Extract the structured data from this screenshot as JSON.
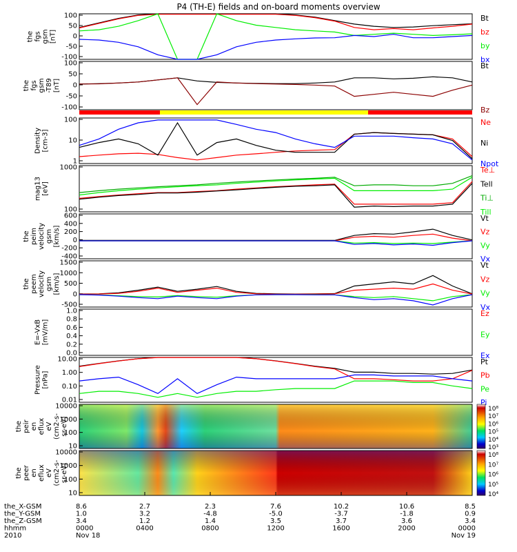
{
  "title": "P4 (TH-E) fields and on-board moments overview",
  "colors": {
    "black": "#000000",
    "red": "#ff0000",
    "green": "#00ee00",
    "blue": "#0000ff",
    "yellow": "#ffff00"
  },
  "chart_data": [
    {
      "type": "line",
      "ylabel": [
        "the",
        "fgs",
        "gsm",
        "[nT]"
      ],
      "yticks": [
        "100",
        "50",
        "0",
        "-50",
        "-100"
      ],
      "ylim": [
        -100,
        100
      ],
      "series": [
        {
          "name": "Bt",
          "color": "#000000",
          "values": [
            40,
            60,
            80,
            95,
            100,
            100,
            100,
            100,
            100,
            100,
            100,
            95,
            85,
            70,
            55,
            45,
            40,
            42,
            48,
            52,
            56
          ]
        },
        {
          "name": "bz",
          "color": "#ff0000",
          "values": [
            38,
            58,
            78,
            93,
            98,
            98,
            98,
            98,
            98,
            98,
            98,
            93,
            83,
            68,
            40,
            30,
            35,
            30,
            38,
            45,
            55
          ]
        },
        {
          "name": "by",
          "color": "#00ee00",
          "values": [
            25,
            30,
            45,
            70,
            100,
            -100,
            -100,
            100,
            70,
            50,
            40,
            30,
            25,
            20,
            5,
            10,
            15,
            10,
            5,
            8,
            12
          ]
        },
        {
          "name": "bx",
          "color": "#0000ff",
          "values": [
            -12,
            -15,
            -25,
            -45,
            -80,
            -100,
            -100,
            -80,
            -45,
            -25,
            -15,
            -10,
            -6,
            -5,
            5,
            0,
            10,
            -5,
            -5,
            0,
            5
          ]
        }
      ]
    },
    {
      "type": "line",
      "ylabel": [
        "the",
        "fgs",
        "gsm",
        "-T89",
        "[nT]"
      ],
      "yticks": [
        "100",
        "50",
        "0",
        "-50",
        "-100"
      ],
      "ylim": [
        -125,
        110
      ],
      "series": [
        {
          "name": "Bt",
          "color": "#000000",
          "values": [
            0,
            2,
            5,
            10,
            20,
            30,
            15,
            8,
            5,
            3,
            2,
            2,
            5,
            10,
            30,
            30,
            25,
            28,
            35,
            30,
            10
          ]
        },
        {
          "name": "Bz",
          "color": "#8b0000",
          "values": [
            0,
            1,
            5,
            10,
            20,
            30,
            -100,
            10,
            5,
            2,
            0,
            -2,
            -5,
            -10,
            -60,
            -50,
            -40,
            -50,
            -60,
            -30,
            -5
          ]
        }
      ]
    },
    {
      "type": "line",
      "ylabel": [
        "Density",
        "[cm-3]"
      ],
      "yticks": [
        "100",
        "10",
        "1"
      ],
      "ylim": [
        0.3,
        200
      ],
      "scale": "log",
      "series": [
        {
          "name": "Ne",
          "color": "#ff0000",
          "values": [
            0.8,
            1,
            1.2,
            1.3,
            1.1,
            0.7,
            0.5,
            0.7,
            1.0,
            1.2,
            1.5,
            1.8,
            2,
            2.2,
            20,
            25,
            22,
            20,
            18,
            10,
            0.8
          ]
        },
        {
          "name": "Ni",
          "color": "#000000",
          "values": [
            3,
            6,
            10,
            5,
            1,
            100,
            1,
            6,
            10,
            4,
            2,
            1.5,
            1.5,
            1.5,
            20,
            25,
            22,
            20,
            18,
            8,
            0.6
          ]
        },
        {
          "name": "Npot",
          "color": "#0000ff",
          "values": [
            4,
            10,
            40,
            100,
            150,
            150,
            150,
            150,
            80,
            40,
            25,
            10,
            5,
            3,
            15,
            15,
            15,
            12,
            10,
            5,
            0.5
          ]
        }
      ]
    },
    {
      "type": "line",
      "ylabel": [
        "mag13",
        "[eV]"
      ],
      "yticks": [
        "1000",
        "100"
      ],
      "ylim": [
        40,
        10000
      ],
      "scale": "log",
      "series": [
        {
          "name": "Te⊥",
          "color": "#ff0000",
          "values": [
            200,
            250,
            300,
            350,
            400,
            400,
            450,
            500,
            600,
            700,
            800,
            900,
            1000,
            1100,
            100,
            100,
            100,
            100,
            100,
            120,
            1500
          ]
        },
        {
          "name": "Tell",
          "color": "#000000",
          "values": [
            180,
            230,
            280,
            320,
            380,
            380,
            420,
            480,
            550,
            650,
            750,
            850,
            900,
            1000,
            70,
            80,
            75,
            80,
            80,
            100,
            1200
          ]
        },
        {
          "name": "Ti⊥",
          "color": "#00aa00",
          "values": [
            400,
            500,
            600,
            700,
            800,
            900,
            1000,
            1200,
            1400,
            1600,
            1800,
            2000,
            2200,
            2500,
            900,
            1000,
            1000,
            900,
            900,
            1200,
            3000
          ]
        },
        {
          "name": "Till",
          "color": "#00ee00",
          "values": [
            300,
            400,
            500,
            600,
            700,
            800,
            900,
            1000,
            1200,
            1400,
            1600,
            1800,
            2000,
            2200,
            500,
            500,
            500,
            500,
            500,
            600,
            2500
          ]
        }
      ]
    },
    {
      "type": "line",
      "ylabel": [
        "the",
        "peim",
        "velocity",
        "gsm",
        "[km/s]"
      ],
      "yticks": [
        "600",
        "400",
        "200",
        "0",
        "-200",
        "-400"
      ],
      "ylim": [
        -400,
        600
      ],
      "series": [
        {
          "name": "Vt",
          "color": "#000000",
          "values": [
            10,
            10,
            10,
            10,
            10,
            10,
            10,
            10,
            10,
            10,
            10,
            10,
            10,
            10,
            120,
            160,
            150,
            200,
            260,
            120,
            20
          ]
        },
        {
          "name": "Vz",
          "color": "#ff0000",
          "values": [
            0,
            0,
            0,
            0,
            0,
            0,
            0,
            0,
            0,
            0,
            0,
            0,
            0,
            0,
            80,
            100,
            80,
            120,
            150,
            60,
            0
          ]
        },
        {
          "name": "Vy",
          "color": "#00ee00",
          "values": [
            0,
            0,
            0,
            0,
            0,
            0,
            0,
            0,
            0,
            0,
            0,
            0,
            0,
            0,
            -50,
            -40,
            -60,
            -50,
            -60,
            -30,
            0
          ]
        },
        {
          "name": "Vx",
          "color": "#0000ff",
          "values": [
            0,
            0,
            0,
            0,
            0,
            0,
            0,
            0,
            0,
            0,
            0,
            0,
            0,
            0,
            -80,
            -60,
            -90,
            -70,
            -100,
            -40,
            0
          ]
        }
      ]
    },
    {
      "type": "line",
      "ylabel": [
        "the",
        "peem",
        "velocity",
        "gsm",
        "[km/s]"
      ],
      "yticks": [
        "1500",
        "1000",
        "500",
        "0",
        "-500"
      ],
      "ylim": [
        -600,
        1600
      ],
      "series": [
        {
          "name": "Vt",
          "color": "#000000",
          "values": [
            20,
            30,
            80,
            200,
            350,
            150,
            250,
            380,
            150,
            50,
            30,
            20,
            30,
            40,
            400,
            500,
            600,
            500,
            900,
            400,
            30
          ]
        },
        {
          "name": "Vz",
          "color": "#ff0000",
          "values": [
            10,
            20,
            50,
            150,
            300,
            100,
            200,
            300,
            100,
            30,
            10,
            10,
            20,
            30,
            200,
            250,
            300,
            250,
            500,
            200,
            20
          ]
        },
        {
          "name": "Vy",
          "color": "#00ee00",
          "values": [
            -10,
            -20,
            -60,
            -100,
            -120,
            -50,
            -100,
            -130,
            -60,
            -20,
            -10,
            -10,
            -10,
            -20,
            -100,
            -150,
            -100,
            -200,
            -300,
            -100,
            -10
          ]
        },
        {
          "name": "Vx",
          "color": "#0000ff",
          "values": [
            -10,
            -30,
            -80,
            -150,
            -200,
            -80,
            -150,
            -200,
            -80,
            -20,
            -10,
            -10,
            -20,
            -20,
            -150,
            -250,
            -200,
            -300,
            -500,
            -200,
            -10
          ]
        }
      ]
    },
    {
      "type": "line",
      "ylabel": [
        "E=-VxB",
        "[mV/m]"
      ],
      "yticks": [
        "1.0",
        "0.8",
        "0.6",
        "0.4",
        "0.2",
        "0.0"
      ],
      "ylim": [
        0,
        1
      ],
      "series": [
        {
          "name": "Ez",
          "color": "#ff0000",
          "values": []
        },
        {
          "name": "Ey",
          "color": "#00ee00",
          "values": []
        },
        {
          "name": "Ex",
          "color": "#0000ff",
          "values": []
        }
      ]
    },
    {
      "type": "line",
      "ylabel": [
        "Pressure",
        "[nPa]"
      ],
      "yticks": [
        "10.00",
        "1.00",
        "0.10",
        "0.01"
      ],
      "ylim": [
        0.004,
        15
      ],
      "scale": "log",
      "series": [
        {
          "name": "Pt",
          "color": "#000000",
          "values": [
            3,
            5,
            8,
            12,
            15,
            15,
            15,
            15,
            15,
            12,
            8,
            5,
            3,
            2,
            1,
            1,
            0.8,
            0.8,
            0.7,
            0.8,
            1.5
          ]
        },
        {
          "name": "Pb",
          "color": "#ff0000",
          "values": [
            2.8,
            4.8,
            7.8,
            11.8,
            14.8,
            14.8,
            14.8,
            14.8,
            14.8,
            11.8,
            7.8,
            4.8,
            2.8,
            1.8,
            0.3,
            0.3,
            0.25,
            0.2,
            0.2,
            0.3,
            1.4
          ]
        },
        {
          "name": "Pe",
          "color": "#00ee00",
          "values": [
            0.02,
            0.03,
            0.03,
            0.02,
            0.01,
            0.02,
            0.01,
            0.02,
            0.03,
            0.03,
            0.04,
            0.05,
            0.05,
            0.05,
            0.2,
            0.2,
            0.2,
            0.15,
            0.15,
            0.08,
            0.05
          ]
        },
        {
          "name": "Pi",
          "color": "#0000ff",
          "values": [
            0.2,
            0.3,
            0.4,
            0.1,
            0.02,
            0.3,
            0.02,
            0.1,
            0.4,
            0.3,
            0.3,
            0.3,
            0.3,
            0.3,
            0.6,
            0.6,
            0.5,
            0.5,
            0.5,
            0.3,
            0.2
          ]
        }
      ]
    },
    {
      "type": "heatmap",
      "ylabel": [
        "the",
        "peir",
        "en",
        "eflux",
        "eV",
        "(cm2-s-",
        "sr-eV)"
      ],
      "yticks": [
        "10000",
        "1000",
        "100",
        "10"
      ],
      "colorbar": [
        "10⁸",
        "10⁷",
        "10⁶",
        "10⁵",
        "10⁴",
        "10³"
      ]
    },
    {
      "type": "heatmap",
      "ylabel": [
        "the",
        "peer",
        "en",
        "eflux",
        "eV",
        "(cm2-s-",
        "sr-eV)"
      ],
      "yticks": [
        "10000",
        "1000",
        "100",
        "10"
      ],
      "colorbar": [
        "10⁸",
        "10⁷",
        "10⁶",
        "10⁵",
        "10⁴"
      ]
    }
  ],
  "xaxis": {
    "rows": [
      {
        "label": "the_X-GSM",
        "values": [
          "8.6",
          "2.7",
          "2.3",
          "7.6",
          "10.2",
          "10.6",
          "8.5"
        ]
      },
      {
        "label": "the_Y-GSM",
        "values": [
          "1.0",
          "3.2",
          "-4.8",
          "-5.0",
          "-3.7",
          "-1.8",
          "0.9"
        ]
      },
      {
        "label": "the_Z-GSM",
        "values": [
          "3.4",
          "1.2",
          "1.4",
          "3.5",
          "3.7",
          "3.6",
          "3.4"
        ]
      },
      {
        "label": "hhmm",
        "values": [
          "0000",
          "0400",
          "0800",
          "1200",
          "1600",
          "2000",
          "0000"
        ]
      },
      {
        "label": "2010",
        "values": [
          "Nov 18",
          "",
          "",
          "",
          "",
          "",
          "Nov 19"
        ]
      }
    ]
  }
}
